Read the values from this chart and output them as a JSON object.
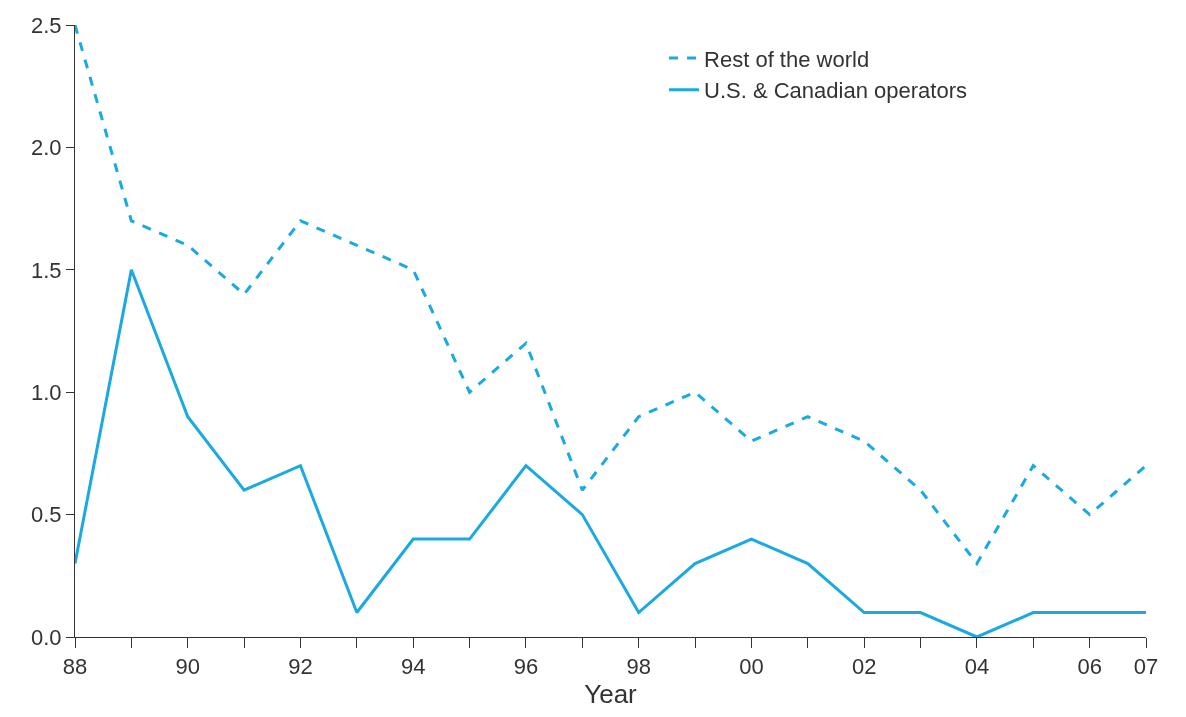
{
  "chart_data": {
    "type": "line",
    "xlabel": "Year",
    "x": [
      1988,
      1989,
      1990,
      1991,
      1992,
      1993,
      1994,
      1995,
      1996,
      1997,
      1998,
      1999,
      2000,
      2001,
      2002,
      2003,
      2004,
      2005,
      2006,
      2007
    ],
    "series": [
      {
        "name": "Rest of the world",
        "color": "#1aa9e0",
        "line_style": "dashed",
        "values": [
          2.5,
          1.7,
          1.6,
          1.4,
          1.7,
          1.6,
          1.5,
          1.0,
          1.2,
          0.6,
          0.9,
          1.0,
          0.8,
          0.9,
          0.8,
          0.6,
          0.3,
          0.7,
          0.5,
          0.7
        ]
      },
      {
        "name": "U.S. & Canadian operators",
        "color": "#1aa9e0",
        "line_style": "solid",
        "values": [
          0.3,
          1.5,
          0.9,
          0.6,
          0.7,
          0.1,
          0.4,
          0.4,
          0.7,
          0.5,
          0.1,
          0.3,
          0.4,
          0.3,
          0.1,
          0.1,
          0.0,
          0.1,
          0.1,
          0.1
        ]
      }
    ],
    "xlim": [
      1988,
      2007
    ],
    "xticks": [
      {
        "value": 1988,
        "label": "88"
      },
      {
        "value": 1989,
        "label": null
      },
      {
        "value": 1990,
        "label": "90"
      },
      {
        "value": 1991,
        "label": null
      },
      {
        "value": 1992,
        "label": "92"
      },
      {
        "value": 1993,
        "label": null
      },
      {
        "value": 1994,
        "label": "94"
      },
      {
        "value": 1995,
        "label": null
      },
      {
        "value": 1996,
        "label": "96"
      },
      {
        "value": 1997,
        "label": null
      },
      {
        "value": 1998,
        "label": "98"
      },
      {
        "value": 1999,
        "label": null
      },
      {
        "value": 2000,
        "label": "00"
      },
      {
        "value": 2001,
        "label": null
      },
      {
        "value": 2002,
        "label": "02"
      },
      {
        "value": 2003,
        "label": null
      },
      {
        "value": 2004,
        "label": "04"
      },
      {
        "value": 2005,
        "label": null
      },
      {
        "value": 2006,
        "label": "06"
      },
      {
        "value": 2007,
        "label": "07"
      }
    ],
    "ylim": [
      0,
      2.5
    ],
    "yticks": [
      {
        "value": 0,
        "label": "0.0"
      },
      {
        "value": 0.5,
        "label": "0.5"
      },
      {
        "value": 1,
        "label": "1.0"
      },
      {
        "value": 1.5,
        "label": "1.5"
      },
      {
        "value": 2,
        "label": "2.0"
      },
      {
        "value": 2.5,
        "label": "2.5"
      }
    ],
    "legend": "top right",
    "marker": "none"
  }
}
